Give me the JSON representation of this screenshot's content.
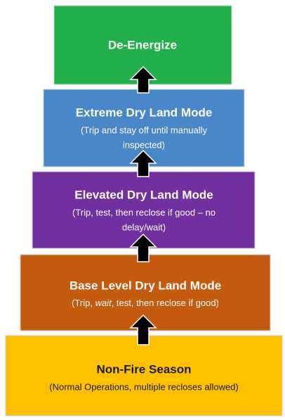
{
  "levels": [
    {
      "title": "De-Energize"
    },
    {
      "title": "Extreme Dry Land Mode",
      "subtitle_lines": [
        "(Trip and stay off until manually",
        "inspected)"
      ]
    },
    {
      "title": "Elevated Dry Land Mode",
      "subtitle_lines": [
        "(Trip, test, then reclose if good – no",
        "delay/wait)"
      ]
    },
    {
      "title": "Base Level Dry Land Mode",
      "subtitle_parts": [
        "(Trip, ",
        "wait",
        ", test, then reclose if good)"
      ]
    },
    {
      "title": "Non-Fire Season",
      "subtitle_lines": [
        "(Normal Operations, multiple recloses allowed)"
      ]
    }
  ]
}
